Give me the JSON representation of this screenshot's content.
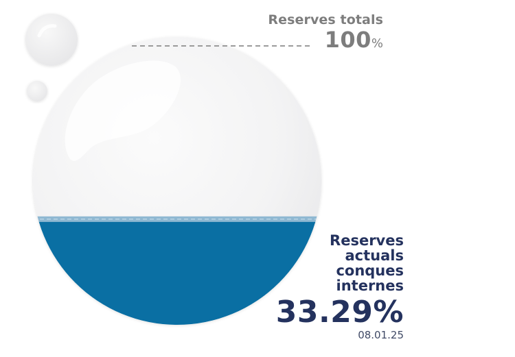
{
  "gauge": {
    "total": {
      "label": "Reserves totals",
      "value": "100",
      "unit": "%"
    },
    "current": {
      "label": "Reserves actuals conques internes",
      "value": "33.29%",
      "date": "08.01.25"
    },
    "fill_fraction": 0.3329,
    "colors": {
      "water": "#0a6fa3",
      "water_light": "#8fb8d2",
      "bubble": "#f2f2f3",
      "total_text": "#7d7d7d",
      "current_text": "#24325e",
      "leader_line": "#9a9a9a"
    }
  }
}
